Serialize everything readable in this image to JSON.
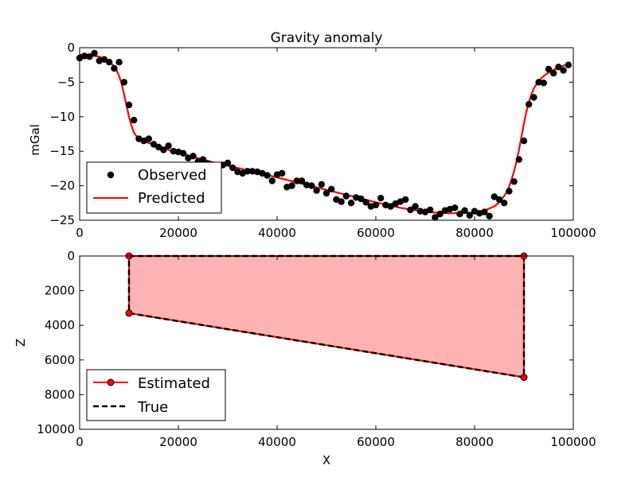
{
  "chart_data": [
    {
      "type": "scatter+line",
      "title": "Gravity anomaly",
      "xlabel": "",
      "ylabel": "mGal",
      "xlim": [
        0,
        100000
      ],
      "ylim": [
        -25,
        0
      ],
      "xticks": [
        0,
        20000,
        40000,
        60000,
        80000,
        100000
      ],
      "yticks": [
        0,
        -5,
        -10,
        -15,
        -20,
        -25
      ],
      "xtick_labels": [
        "0",
        "20000",
        "40000",
        "60000",
        "80000",
        "100000"
      ],
      "ytick_labels": [
        "0",
        "−5",
        "−10",
        "−15",
        "−20",
        "−25"
      ],
      "legend": {
        "placement": "lower-left",
        "entries": [
          "Observed",
          "Predicted"
        ]
      },
      "series": [
        {
          "name": "Observed",
          "kind": "scatter",
          "color": "#000000",
          "x": [
            0,
            1000,
            2000,
            3000,
            4000,
            5000,
            6000,
            7000,
            8000,
            9000,
            10000,
            11000,
            12000,
            13000,
            14000,
            15000,
            16000,
            17000,
            18000,
            19000,
            20000,
            21000,
            22000,
            23000,
            24000,
            25000,
            26000,
            27000,
            28000,
            29000,
            30000,
            31000,
            32000,
            33000,
            34000,
            35000,
            36000,
            37000,
            38000,
            39000,
            40000,
            41000,
            42000,
            43000,
            44000,
            45000,
            46000,
            47000,
            48000,
            49000,
            50000,
            51000,
            52000,
            53000,
            54000,
            55000,
            56000,
            57000,
            58000,
            59000,
            60000,
            61000,
            62000,
            63000,
            64000,
            65000,
            66000,
            67000,
            68000,
            69000,
            70000,
            71000,
            72000,
            73000,
            74000,
            75000,
            76000,
            77000,
            78000,
            79000,
            80000,
            81000,
            82000,
            83000,
            84000,
            85000,
            86000,
            87000,
            88000,
            89000,
            90000,
            91000,
            92000,
            93000,
            94000,
            95000,
            96000,
            97000,
            98000,
            99000
          ],
          "y": [
            -1.5,
            -1.2,
            -1.3,
            -0.8,
            -1.9,
            -1.7,
            -2.1,
            -3.0,
            -2.1,
            -5.0,
            -8.3,
            -10.5,
            -13.2,
            -13.5,
            -13.2,
            -14.0,
            -14.4,
            -14.8,
            -14.2,
            -15.0,
            -15.1,
            -15.3,
            -16.0,
            -15.7,
            -16.5,
            -16.2,
            -16.8,
            -17.0,
            -17.3,
            -17.0,
            -16.7,
            -17.4,
            -18.0,
            -18.2,
            -17.9,
            -17.9,
            -18.0,
            -18.2,
            -18.5,
            -19.3,
            -18.4,
            -18.2,
            -20.2,
            -20.0,
            -19.3,
            -19.3,
            -19.9,
            -20.0,
            -20.7,
            -19.8,
            -21.1,
            -20.5,
            -22.0,
            -22.3,
            -21.5,
            -22.5,
            -21.7,
            -21.9,
            -22.4,
            -23.0,
            -22.8,
            -21.8,
            -22.8,
            -23.0,
            -22.6,
            -22.3,
            -22.0,
            -23.5,
            -23.0,
            -23.7,
            -23.8,
            -23.5,
            -24.6,
            -24.1,
            -23.6,
            -23.4,
            -23.2,
            -24.1,
            -23.6,
            -24.3,
            -23.7,
            -24.0,
            -23.8,
            -24.4,
            -21.6,
            -22.0,
            -22.5,
            -20.8,
            -19.4,
            -16.2,
            -13.5,
            -8.2,
            -7.2,
            -5.0,
            -5.1,
            -3.1,
            -3.7,
            -2.8,
            -3.3,
            -2.5
          ]
        },
        {
          "name": "Predicted",
          "kind": "line",
          "color": "#ff0000",
          "x": [
            0,
            2000,
            4000,
            5000,
            6000,
            7000,
            7500,
            8000,
            8500,
            9000,
            9500,
            10000,
            10500,
            11000,
            11500,
            12000,
            13000,
            14000,
            16000,
            18000,
            20000,
            22000,
            24000,
            26000,
            28000,
            30000,
            35000,
            40000,
            45000,
            50000,
            55000,
            60000,
            65000,
            70000,
            75000,
            80000,
            82000,
            84000,
            85000,
            86000,
            86500,
            87000,
            87500,
            88000,
            88500,
            89000,
            89500,
            90000,
            90500,
            91000,
            91500,
            92000,
            93000,
            94000,
            95000,
            96000,
            97000,
            98000,
            99000
          ],
          "y": [
            -1.0,
            -1.1,
            -1.3,
            -1.6,
            -2.0,
            -2.7,
            -3.3,
            -4.1,
            -5.2,
            -6.7,
            -8.4,
            -10.0,
            -11.3,
            -12.3,
            -12.8,
            -13.1,
            -13.5,
            -13.8,
            -14.3,
            -14.8,
            -15.2,
            -15.6,
            -16.0,
            -16.4,
            -16.8,
            -17.1,
            -17.9,
            -18.8,
            -19.7,
            -20.6,
            -21.5,
            -22.4,
            -23.2,
            -23.8,
            -24.0,
            -23.9,
            -23.6,
            -23.0,
            -22.4,
            -21.5,
            -20.9,
            -20.1,
            -19.1,
            -17.9,
            -16.5,
            -14.8,
            -12.9,
            -11.0,
            -9.3,
            -7.9,
            -6.8,
            -5.9,
            -4.8,
            -4.1,
            -3.6,
            -3.2,
            -2.9,
            -2.6,
            -2.4
          ]
        }
      ]
    },
    {
      "type": "polygon",
      "title": "",
      "xlabel": "X",
      "ylabel": "Z",
      "xlim": [
        0,
        100000
      ],
      "ylim": [
        10000,
        0
      ],
      "y_inverted": true,
      "xticks": [
        0,
        20000,
        40000,
        60000,
        80000,
        100000
      ],
      "yticks": [
        0,
        2000,
        4000,
        6000,
        8000,
        10000
      ],
      "xtick_labels": [
        "0",
        "20000",
        "40000",
        "60000",
        "80000",
        "100000"
      ],
      "ytick_labels": [
        "0",
        "2000",
        "4000",
        "6000",
        "8000",
        "10000"
      ],
      "fill_color": "#ffb3b3",
      "legend": {
        "placement": "lower-left",
        "entries": [
          "Estimated",
          "True"
        ]
      },
      "series": [
        {
          "name": "Estimated",
          "kind": "polygon-line-markers",
          "color": "#ff0000",
          "x": [
            10000,
            90000,
            90000,
            10000,
            10000
          ],
          "y": [
            0,
            0,
            7000,
            3300,
            0
          ]
        },
        {
          "name": "True",
          "kind": "dashed-polygon",
          "color": "#000000",
          "x": [
            10000,
            90000,
            90000,
            10000,
            10000
          ],
          "y": [
            0,
            0,
            7000,
            3300,
            0
          ]
        }
      ]
    }
  ]
}
